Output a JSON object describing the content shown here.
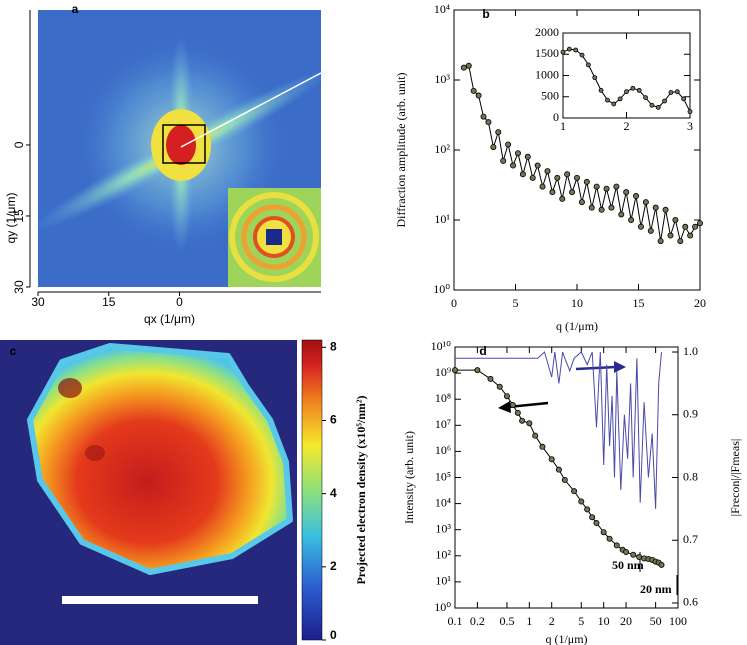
{
  "chart_data": [
    {
      "type": "image",
      "label": "a",
      "xlabel": "qx (1/μm)",
      "ylabel": "qy (1/μm)",
      "xlim": [
        30,
        -30
      ],
      "xticks": [
        30,
        15,
        0
      ],
      "ylim": [
        -28.5,
        30
      ],
      "yticks": [
        0,
        15,
        30
      ]
    },
    {
      "type": "line",
      "label": "b",
      "xlabel": "q (1/μm)",
      "ylabel": "Diffraction amplitude (arb. unit)",
      "xlim": [
        0,
        20
      ],
      "xticks": [
        0,
        5,
        10,
        15,
        20
      ],
      "ylog": true,
      "ylim": [
        1,
        10000
      ],
      "yticks": [
        {
          "value": 1,
          "label": "10⁰"
        },
        {
          "value": 10,
          "label": "10¹"
        },
        {
          "value": 100,
          "label": "10²"
        },
        {
          "value": 1000,
          "label": "10³"
        },
        {
          "value": 10000,
          "label": "10⁴"
        }
      ],
      "series": [
        {
          "color": "#000000",
          "marker": "circle",
          "x": [
            0.8,
            1.2,
            1.6,
            2,
            2.4,
            2.8,
            3.2,
            3.6,
            4,
            4.4,
            4.8,
            5.2,
            5.6,
            6,
            6.4,
            6.8,
            7.2,
            7.6,
            8,
            8.4,
            8.8,
            9.2,
            9.6,
            10,
            10.4,
            10.8,
            11.2,
            11.6,
            12,
            12.4,
            12.8,
            13.2,
            13.6,
            14,
            14.4,
            14.8,
            15.2,
            15.6,
            16,
            16.4,
            16.8,
            17.2,
            17.6,
            18,
            18.4,
            18.8,
            19.2,
            19.6,
            20
          ],
          "values": [
            1500,
            1600,
            700,
            600,
            300,
            250,
            110,
            180,
            70,
            120,
            60,
            90,
            45,
            80,
            40,
            60,
            30,
            50,
            25,
            40,
            20,
            45,
            25,
            40,
            18,
            35,
            15,
            30,
            14,
            28,
            15,
            30,
            12,
            25,
            10,
            22,
            8,
            18,
            7,
            15,
            5,
            14,
            6,
            10,
            5,
            8,
            6,
            8,
            9
          ]
        }
      ],
      "inset": {
        "xlim": [
          1,
          3
        ],
        "xticks": [
          1,
          2,
          3
        ],
        "ylim": [
          0,
          2000
        ],
        "yticks": [
          0,
          500,
          1000,
          1500,
          2000
        ],
        "color": "#000000",
        "marker": "circle",
        "x": [
          1,
          1.1,
          1.2,
          1.3,
          1.4,
          1.5,
          1.6,
          1.7,
          1.8,
          1.9,
          2,
          2.1,
          2.2,
          2.3,
          2.4,
          2.5,
          2.6,
          2.7,
          2.8,
          2.9,
          3
        ],
        "values": [
          1550,
          1620,
          1600,
          1480,
          1250,
          950,
          650,
          420,
          330,
          450,
          620,
          700,
          650,
          480,
          300,
          250,
          400,
          600,
          620,
          450,
          150
        ]
      }
    },
    {
      "type": "image",
      "label": "c",
      "colorbar": {
        "label": "Projected electron density (x10⁵/nm²)",
        "ylim": [
          0,
          8.2
        ],
        "yticks": [
          0,
          2,
          4,
          6,
          8
        ]
      }
    },
    {
      "type": "line",
      "label": "d",
      "xlabel": "q (1/μm)",
      "ylabel": "Intensity (arb. unit)",
      "y2label": "|Frecon|/|Fmeas|",
      "xlog": true,
      "xlim": [
        0.1,
        100
      ],
      "xticks": [
        0.1,
        0.2,
        0.5,
        1,
        2,
        5,
        10,
        20,
        50,
        100
      ],
      "ylog": true,
      "ylim": [
        1,
        10000000000
      ],
      "yticks": [
        {
          "value": 1,
          "label": "10⁰"
        },
        {
          "value": 10,
          "label": "10¹"
        },
        {
          "value": 100,
          "label": "10²"
        },
        {
          "value": 1000,
          "label": "10³"
        },
        {
          "value": 10000,
          "label": "10⁴"
        },
        {
          "value": 100000,
          "label": "10⁵"
        },
        {
          "value": 1000000,
          "label": "10⁶"
        },
        {
          "value": 10000000,
          "label": "10⁷"
        },
        {
          "value": 100000000,
          "label": "10⁸"
        },
        {
          "value": 1000000000,
          "label": "10⁹"
        },
        {
          "value": 10000000000,
          "label": "10¹⁰"
        }
      ],
      "y2lim": [
        0.592,
        1.008
      ],
      "y2ticks": [
        0.6,
        0.7,
        0.8,
        0.9,
        {
          "value": 1,
          "label": "1.0"
        }
      ],
      "annotations": [
        "50 nm",
        "20 nm"
      ],
      "series": [
        {
          "color": "#000000",
          "marker": "circle",
          "x": [
            0.1,
            0.2,
            0.3,
            0.4,
            0.5,
            0.6,
            0.7,
            0.8,
            1,
            1.2,
            1.5,
            2,
            2.5,
            3,
            4,
            5,
            6,
            7,
            8,
            10,
            12,
            15,
            18,
            20,
            25,
            30,
            35,
            40,
            45,
            50,
            55,
            60
          ],
          "values": [
            1300000000,
            1300000000,
            600000000,
            300000000,
            130000000,
            60000000,
            30000000,
            15000000,
            12000000,
            4000000,
            1500000,
            500000,
            200000,
            80000,
            30000,
            12000,
            6000,
            3000,
            1800,
            800,
            450,
            250,
            170,
            140,
            110,
            90,
            80,
            75,
            70,
            60,
            55,
            45
          ]
        },
        {
          "color": "#4a4aa8",
          "axis": "y2",
          "x": [
            0.1,
            0.2,
            0.3,
            0.5,
            0.7,
            1,
            1.3,
            1.6,
            2,
            2.2,
            2.5,
            2.8,
            3,
            3.5,
            4,
            5,
            6,
            7,
            8,
            9,
            10,
            11,
            12,
            13,
            14,
            15,
            17,
            19,
            21,
            23,
            25,
            28,
            31,
            35,
            40,
            45,
            50,
            55,
            60
          ],
          "values": [
            0.99,
            0.99,
            0.99,
            0.99,
            0.99,
            0.99,
            0.99,
            1.0,
            0.96,
            1.0,
            0.95,
            1.0,
            0.99,
            0.97,
            0.99,
            1.0,
            0.98,
            1.0,
            0.88,
            1.0,
            0.82,
            0.98,
            0.85,
            0.93,
            0.8,
            0.97,
            0.78,
            0.9,
            0.83,
            0.95,
            0.8,
            0.99,
            0.76,
            0.92,
            0.8,
            0.87,
            0.75,
            0.95,
            1.0
          ]
        }
      ]
    }
  ]
}
